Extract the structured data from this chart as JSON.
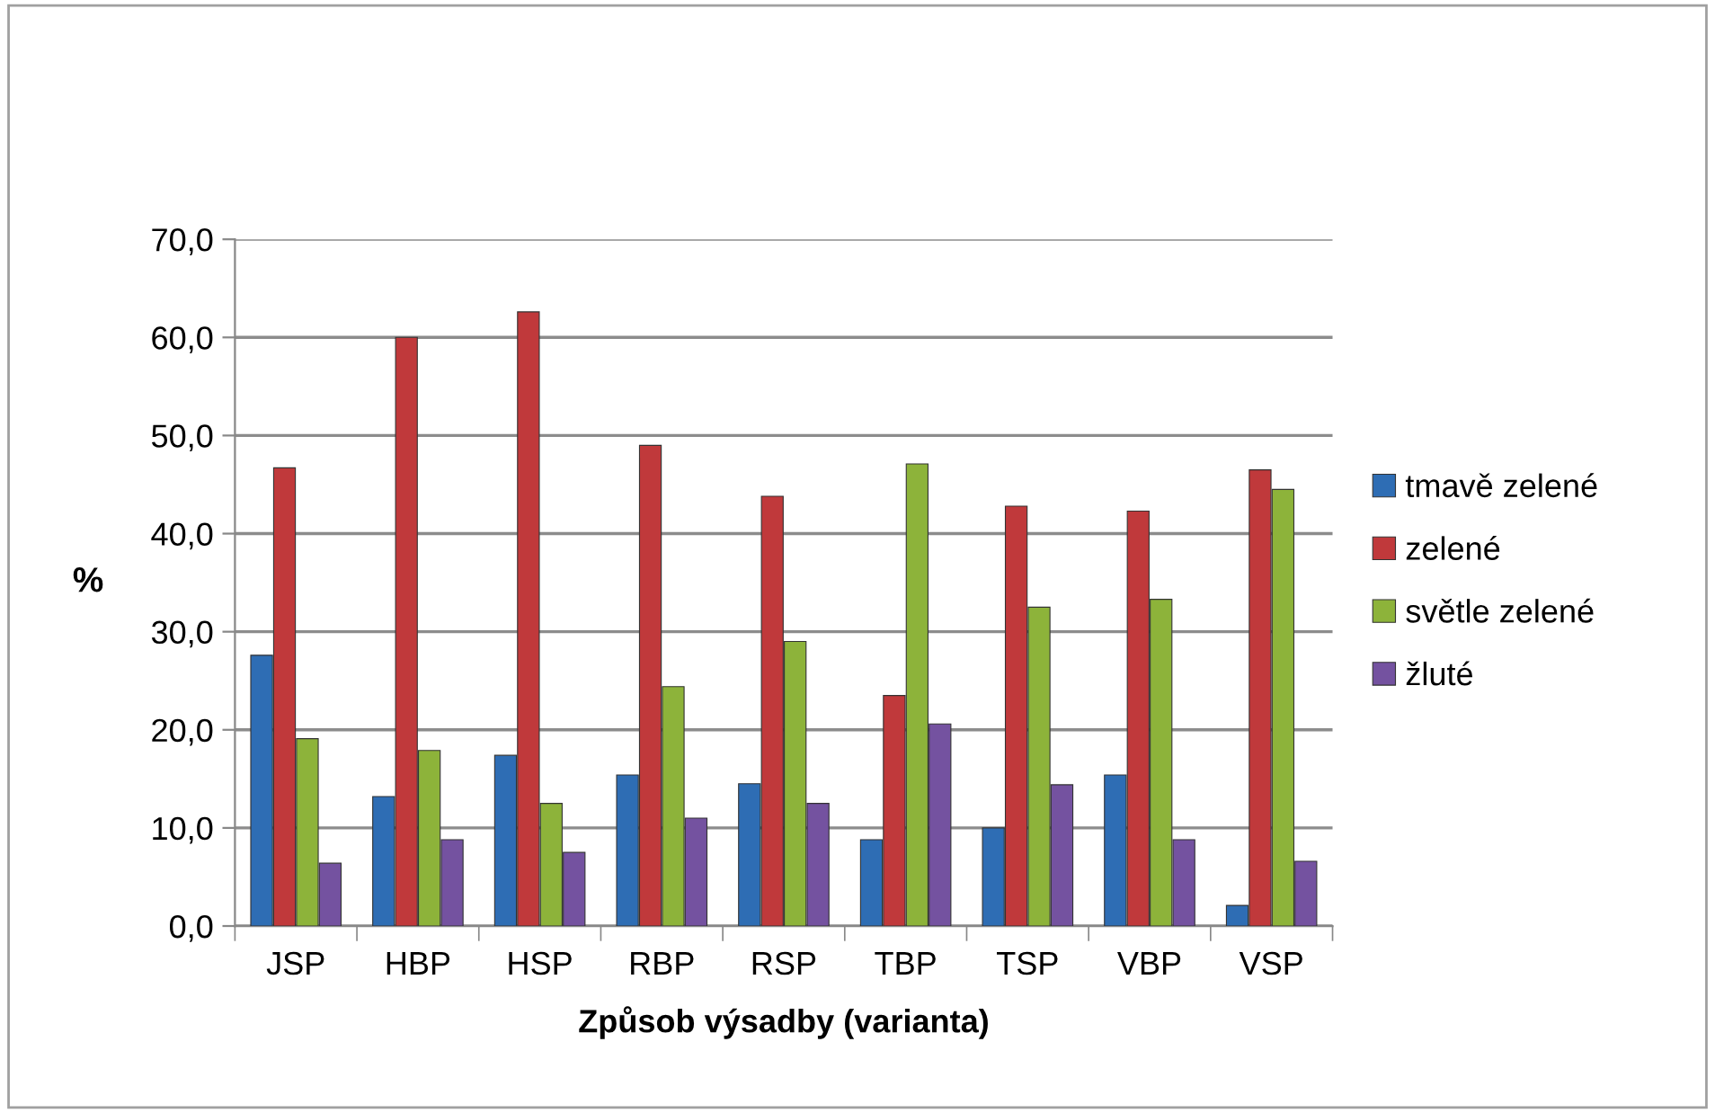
{
  "chart_data": {
    "type": "bar",
    "xlabel": "Způsob výsadby (varianta)",
    "ylabel": "%",
    "categories": [
      "JSP",
      "HBP",
      "HSP",
      "RBP",
      "RSP",
      "TBP",
      "TSP",
      "VBP",
      "VSP"
    ],
    "series": [
      {
        "name": "tmavě zelené",
        "color": "#2e6db4",
        "values": [
          27.6,
          13.2,
          17.4,
          15.4,
          14.5,
          8.8,
          10.0,
          15.4,
          2.1
        ]
      },
      {
        "name": "zelené",
        "color": "#c0393b",
        "values": [
          46.7,
          60.0,
          62.6,
          49.0,
          43.8,
          23.5,
          42.8,
          42.3,
          46.5
        ]
      },
      {
        "name": "světle zelené",
        "color": "#8db33a",
        "values": [
          19.1,
          17.9,
          12.5,
          24.4,
          29.0,
          47.1,
          32.5,
          33.3,
          44.5
        ]
      },
      {
        "name": "žluté",
        "color": "#7452a0",
        "values": [
          6.4,
          8.8,
          7.5,
          11.0,
          12.5,
          20.6,
          14.4,
          8.8,
          6.6
        ]
      }
    ],
    "ylim": [
      0,
      70
    ],
    "yticks": [
      {
        "value": 0,
        "label": "0,0"
      },
      {
        "value": 10,
        "label": "10,0"
      },
      {
        "value": 20,
        "label": "20,0"
      },
      {
        "value": 30,
        "label": "30,0"
      },
      {
        "value": 40,
        "label": "40,0"
      },
      {
        "value": 50,
        "label": "50,0"
      },
      {
        "value": 60,
        "label": "60,0"
      },
      {
        "value": 70,
        "label": "70,0"
      }
    ],
    "grid": "y",
    "legend": "right"
  }
}
